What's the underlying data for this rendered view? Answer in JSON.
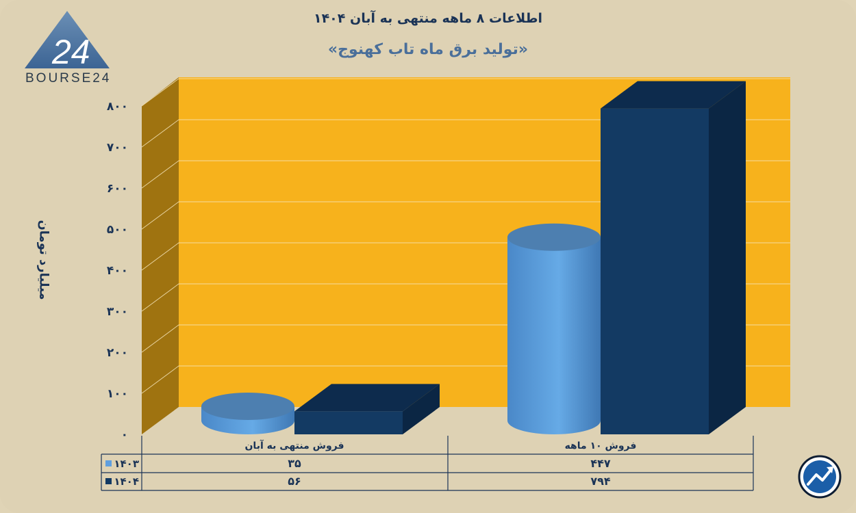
{
  "header": {
    "title": "اطلاعات ۸ ماهه منتهی به آبان ۱۴۰۴",
    "subtitle": "«تولید برق ماه تاب کهنوج»"
  },
  "logo": {
    "text": "BOURSE24"
  },
  "colors": {
    "background": "#ded2b4",
    "plot_back": "#f7b21c",
    "plot_side": "#9f7310",
    "series_1403": "#5f9fdf",
    "series_1404": "#133a63"
  },
  "chart_data": {
    "type": "bar",
    "title": "«تولید برق ماه تاب کهنوج»",
    "ylabel": "میلیارد تومان",
    "xlabel": "",
    "ylim": [
      0,
      800
    ],
    "y_ticks": [
      "۰",
      "۱۰۰",
      "۲۰۰",
      "۳۰۰",
      "۴۰۰",
      "۵۰۰",
      "۶۰۰",
      "۷۰۰",
      "۸۰۰"
    ],
    "categories": [
      "فروش منتهی به  آبان",
      "فروش ۱۰  ماهه"
    ],
    "series": [
      {
        "name": "۱۴۰۳",
        "shape": "cylinder",
        "color": "#5f9fdf",
        "values": [
          35,
          447
        ],
        "labels": [
          "۳۵",
          "۴۴۷"
        ]
      },
      {
        "name": "۱۴۰۴",
        "shape": "box",
        "color": "#133a63",
        "values": [
          56,
          794
        ],
        "labels": [
          "۵۶",
          "۷۹۴"
        ]
      }
    ],
    "grid": true,
    "legend": "data-table"
  }
}
